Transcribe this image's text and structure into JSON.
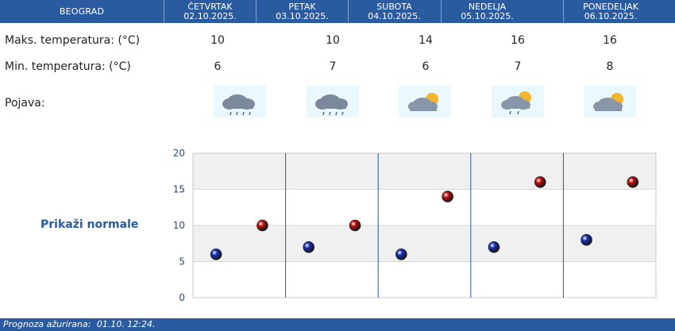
{
  "header": {
    "city": "BEOGRAD",
    "days": [
      {
        "name": "ČETVRTAK",
        "date": "02.10.2025."
      },
      {
        "name": "PETAK",
        "date": "03.10.2025."
      },
      {
        "name": "SUBOTA",
        "date": "04.10.2025."
      },
      {
        "name": "NEDELJA",
        "date": "05.10.2025."
      },
      {
        "name": "PONEDELJAK",
        "date": "06.10.2025."
      }
    ]
  },
  "rows": {
    "max_label": "Maks. temperatura: (°C)",
    "min_label": "Min. temperatura: (°C)",
    "phen_label": "Pojava:",
    "max": [
      "10",
      "10",
      "14",
      "16",
      "16"
    ],
    "min": [
      "6",
      "7",
      "6",
      "7",
      "8"
    ],
    "icons": [
      "cloud-rain-icon",
      "cloud-rain-icon",
      "partly-cloudy-sun-icon",
      "partly-cloudy-sun-rain-icon",
      "partly-cloudy-sun-icon"
    ]
  },
  "normals_link": "Prikaži normale",
  "chart_data": {
    "type": "scatter",
    "categories": [
      "ČETVRTAK",
      "PETAK",
      "SUBOTA",
      "NEDELJA",
      "PONEDELJAK"
    ],
    "series": [
      {
        "values": [
          6,
          7,
          6,
          7,
          8
        ],
        "color": "#1a2fbf"
      },
      {
        "values": [
          10,
          10,
          14,
          16,
          16
        ],
        "color": "#c40d0d"
      }
    ],
    "ylim": [
      0,
      20
    ],
    "yticks": [
      "0",
      "5",
      "10",
      "15",
      "20"
    ],
    "grid": true
  },
  "footer": {
    "label": "Prognoza ažurirana:",
    "time": "01.10. 12:24."
  },
  "colors": {
    "bar": "#2a5aa0",
    "max_point": "#c40d0d",
    "min_point": "#1a2fbf"
  }
}
